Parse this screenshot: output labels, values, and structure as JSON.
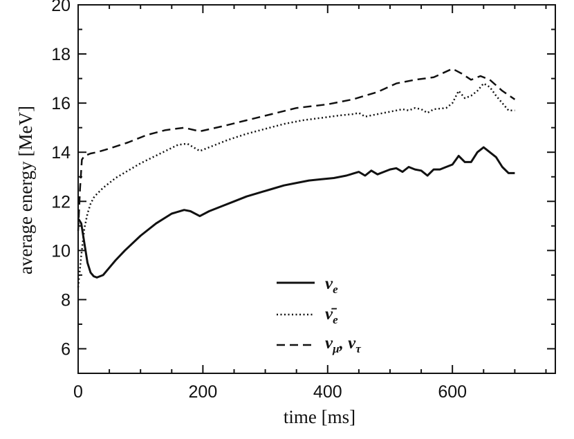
{
  "chart_data": {
    "type": "line",
    "title": "",
    "xlabel": "time [ms]",
    "ylabel": "average energy [MeV]",
    "xlim": [
      0,
      765
    ],
    "ylim": [
      5,
      20
    ],
    "xticks": [
      0,
      200,
      400,
      600
    ],
    "yticks": [
      6,
      8,
      10,
      12,
      14,
      16,
      18,
      20
    ],
    "grid": false,
    "legend_position": "lower-center",
    "series": [
      {
        "name": "ν_e",
        "label_main": "ν",
        "label_sub": "e",
        "style": "solid",
        "x": [
          0,
          5,
          10,
          15,
          20,
          25,
          30,
          40,
          50,
          60,
          75,
          100,
          125,
          150,
          170,
          180,
          195,
          210,
          230,
          250,
          270,
          290,
          310,
          330,
          350,
          370,
          390,
          410,
          430,
          450,
          460,
          470,
          480,
          490,
          500,
          510,
          520,
          530,
          540,
          550,
          560,
          570,
          580,
          590,
          600,
          610,
          620,
          630,
          640,
          650,
          660,
          670,
          680,
          690,
          700
        ],
        "y": [
          11.3,
          11.1,
          10.3,
          9.5,
          9.1,
          8.95,
          8.9,
          9.0,
          9.3,
          9.6,
          10.0,
          10.6,
          11.1,
          11.5,
          11.65,
          11.6,
          11.4,
          11.6,
          11.8,
          12.0,
          12.2,
          12.35,
          12.5,
          12.65,
          12.75,
          12.85,
          12.9,
          12.95,
          13.05,
          13.2,
          13.05,
          13.25,
          13.1,
          13.2,
          13.3,
          13.35,
          13.2,
          13.4,
          13.3,
          13.25,
          13.05,
          13.3,
          13.3,
          13.4,
          13.5,
          13.85,
          13.6,
          13.6,
          14.0,
          14.2,
          14.0,
          13.8,
          13.4,
          13.15,
          13.15
        ]
      },
      {
        "name": "ν̄_e",
        "label_main": "ν̄",
        "label_sub": "e",
        "style": "dotted",
        "x": [
          0,
          5,
          10,
          15,
          20,
          25,
          30,
          40,
          50,
          60,
          80,
          100,
          120,
          140,
          160,
          175,
          195,
          210,
          240,
          270,
          300,
          330,
          360,
          390,
          420,
          440,
          450,
          460,
          480,
          500,
          520,
          530,
          540,
          550,
          560,
          570,
          590,
          600,
          610,
          620,
          630,
          640,
          650,
          660,
          670,
          680,
          690,
          700
        ],
        "y": [
          8.5,
          9.8,
          10.9,
          11.5,
          11.9,
          12.15,
          12.3,
          12.55,
          12.75,
          12.95,
          13.25,
          13.55,
          13.8,
          14.05,
          14.3,
          14.35,
          14.05,
          14.2,
          14.5,
          14.75,
          14.95,
          15.15,
          15.3,
          15.4,
          15.5,
          15.55,
          15.6,
          15.45,
          15.55,
          15.65,
          15.75,
          15.7,
          15.8,
          15.75,
          15.6,
          15.75,
          15.8,
          16.0,
          16.5,
          16.2,
          16.3,
          16.5,
          16.8,
          16.65,
          16.3,
          16.0,
          15.7,
          15.7
        ]
      },
      {
        "name": "ν_μ, ν_τ",
        "label_main": "ν",
        "label_sub": "μ",
        "label_sep": ", ",
        "label_main2": "ν",
        "label_sub2": "τ",
        "style": "dashed",
        "x": [
          0,
          3,
          6,
          10,
          15,
          20,
          30,
          50,
          80,
          110,
          140,
          170,
          195,
          230,
          270,
          310,
          350,
          400,
          440,
          480,
          510,
          540,
          570,
          600,
          615,
          630,
          645,
          660,
          680,
          700
        ],
        "y": [
          10.8,
          12.5,
          13.7,
          13.85,
          13.9,
          13.95,
          14.0,
          14.15,
          14.4,
          14.7,
          14.9,
          15.0,
          14.85,
          15.05,
          15.3,
          15.55,
          15.8,
          15.95,
          16.15,
          16.45,
          16.8,
          16.95,
          17.05,
          17.4,
          17.2,
          16.95,
          17.1,
          16.95,
          16.5,
          16.15
        ]
      }
    ]
  }
}
